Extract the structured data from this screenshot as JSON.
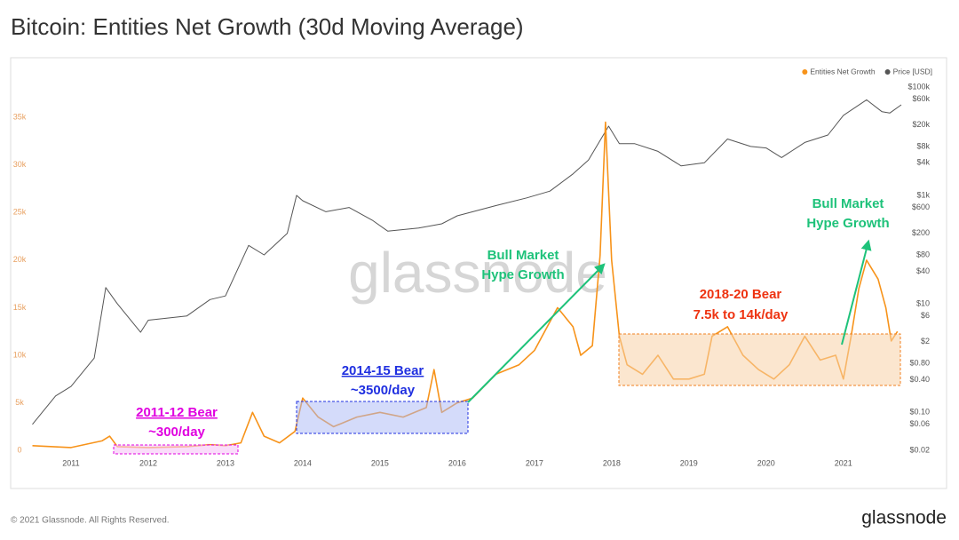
{
  "title": "Bitcoin: Entities Net Growth (30d Moving Average)",
  "footer": "© 2021 Glassnode. All Rights Reserved.",
  "logo": "glassnode",
  "watermark": "glassnode",
  "chart_data": {
    "type": "line",
    "xlim": [
      2010.5,
      2021.75
    ],
    "xticks": [
      2011,
      2012,
      2013,
      2014,
      2015,
      2016,
      2017,
      2018,
      2019,
      2020,
      2021
    ],
    "ylim": [
      -1200,
      39400
    ],
    "yticks": [
      0,
      {
        "value": 5000,
        "label": "5k"
      },
      {
        "value": 10000,
        "label": "10k"
      },
      {
        "value": 15000,
        "label": "15k"
      },
      {
        "value": 20000,
        "label": "20k"
      },
      {
        "value": 25000,
        "label": "25k"
      },
      {
        "value": 30000,
        "label": "30k"
      },
      {
        "value": 35000,
        "label": "35k"
      }
    ],
    "y2lim": [
      0.0122,
      163000
    ],
    "y2log": true,
    "y2ticks": [
      {
        "value": 100000,
        "label": "$100k"
      },
      {
        "value": 60000,
        "label": "$60k"
      },
      {
        "value": 20000,
        "label": "$20k"
      },
      {
        "value": 8000,
        "label": "$8k"
      },
      {
        "value": 4000,
        "label": "$4k"
      },
      {
        "value": 1000,
        "label": "$1k"
      },
      {
        "value": 600,
        "label": "$600"
      },
      {
        "value": 200,
        "label": "$200"
      },
      {
        "value": 80,
        "label": "$80"
      },
      {
        "value": 40,
        "label": "$40"
      },
      {
        "value": 10,
        "label": "$10"
      },
      {
        "value": 6,
        "label": "$6"
      },
      {
        "value": 2,
        "label": "$2"
      },
      {
        "value": 0.8,
        "label": "$0.80"
      },
      {
        "value": 0.4,
        "label": "$0.40"
      },
      {
        "value": 0.1,
        "label": "$0.10"
      },
      {
        "value": 0.06,
        "label": "$0.06"
      },
      {
        "value": 0.02,
        "label": "$0.02"
      }
    ],
    "legend": "top-right",
    "series": [
      {
        "name": "Entities Net Growth",
        "color": "#f7931a",
        "axis": "y",
        "x": [
          2010.5,
          2011.0,
          2011.4,
          2011.5,
          2011.6,
          2012.0,
          2012.5,
          2012.8,
          2013.0,
          2013.2,
          2013.35,
          2013.5,
          2013.7,
          2013.9,
          2014.0,
          2014.2,
          2014.4,
          2014.7,
          2015.0,
          2015.3,
          2015.6,
          2015.7,
          2015.8,
          2016.0,
          2016.2,
          2016.5,
          2016.8,
          2017.0,
          2017.3,
          2017.5,
          2017.6,
          2017.75,
          2017.85,
          2017.92,
          2018.0,
          2018.1,
          2018.2,
          2018.4,
          2018.6,
          2018.8,
          2019.0,
          2019.2,
          2019.3,
          2019.5,
          2019.7,
          2019.9,
          2020.1,
          2020.3,
          2020.5,
          2020.7,
          2020.9,
          2021.0,
          2021.1,
          2021.2,
          2021.3,
          2021.45,
          2021.55,
          2021.62,
          2021.7
        ],
        "values": [
          500,
          300,
          1000,
          1500,
          400,
          300,
          400,
          600,
          500,
          800,
          4000,
          1500,
          800,
          2000,
          5500,
          3500,
          2500,
          3500,
          4000,
          3500,
          4500,
          8500,
          4000,
          5000,
          5500,
          8000,
          9000,
          10500,
          15000,
          13000,
          10000,
          11000,
          20500,
          34500,
          20000,
          12000,
          9000,
          8000,
          10000,
          7500,
          7500,
          8000,
          12000,
          13000,
          10000,
          8500,
          7500,
          9000,
          12000,
          9500,
          10000,
          7500,
          12000,
          17000,
          20000,
          18000,
          15000,
          11500,
          12500
        ]
      },
      {
        "name": "Price [USD]",
        "color": "#555555",
        "axis": "y2",
        "x": [
          2010.5,
          2010.8,
          2011.0,
          2011.3,
          2011.45,
          2011.6,
          2011.9,
          2012.0,
          2012.5,
          2012.8,
          2013.0,
          2013.3,
          2013.5,
          2013.8,
          2013.92,
          2014.0,
          2014.3,
          2014.6,
          2014.9,
          2015.1,
          2015.5,
          2015.8,
          2016.0,
          2016.5,
          2016.9,
          2017.2,
          2017.5,
          2017.7,
          2017.96,
          2018.1,
          2018.3,
          2018.6,
          2018.9,
          2019.2,
          2019.5,
          2019.8,
          2020.0,
          2020.2,
          2020.5,
          2020.8,
          2021.0,
          2021.3,
          2021.5,
          2021.6,
          2021.75
        ],
        "values": [
          0.06,
          0.2,
          0.3,
          1,
          20,
          10,
          3,
          5,
          6,
          12,
          14,
          120,
          80,
          200,
          1000,
          800,
          500,
          600,
          350,
          220,
          250,
          300,
          420,
          650,
          900,
          1200,
          2500,
          4500,
          19000,
          9000,
          9000,
          6500,
          3500,
          4000,
          11000,
          8000,
          7500,
          5000,
          9500,
          13000,
          30000,
          58000,
          35000,
          33000,
          47000
        ]
      }
    ],
    "annotations": [
      {
        "lines": [
          "2011-12 Bear",
          "~300/day"
        ],
        "color": "#e000e0"
      },
      {
        "lines": [
          "2014-15 Bear",
          "~3500/day"
        ],
        "color": "#2030e0"
      },
      {
        "lines": [
          "Bull Market",
          "Hype Growth"
        ],
        "color": "#1ec27a"
      },
      {
        "lines": [
          "2018-20 Bear",
          "7.5k to 14k/day"
        ],
        "color": "#ee3311"
      },
      {
        "lines": [
          "Bull Market",
          "Hype Growth"
        ],
        "color": "#1ec27a"
      }
    ]
  }
}
